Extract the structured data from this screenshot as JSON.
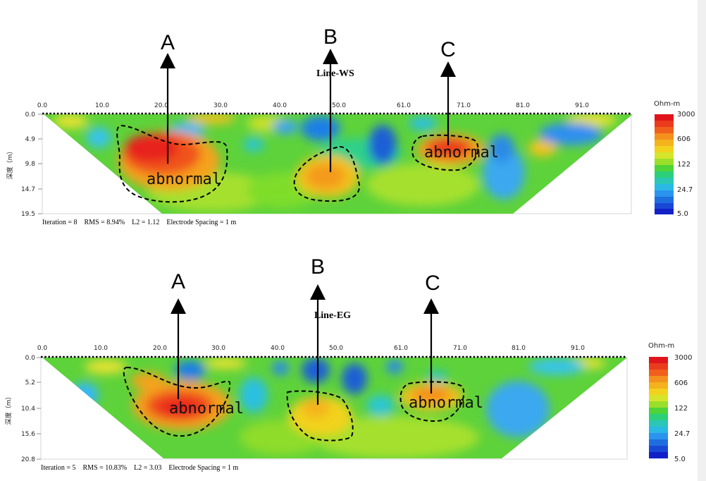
{
  "chart_data": [
    {
      "type": "heatmap",
      "title": "Line-WS",
      "ylabel": "深度（m）",
      "x_ticks": [
        "0.0",
        "10.0",
        "20.0",
        "30.0",
        "40.0",
        "50.0",
        "61.0",
        "71.0",
        "81.0",
        "91.0"
      ],
      "y_ticks": [
        "0.0",
        "4.9",
        "9.8",
        "14.7",
        "19.5"
      ],
      "xlim": [
        0,
        97
      ],
      "ylim": [
        0,
        19.5
      ],
      "colorbar": {
        "unit": "Ohm-m",
        "ticks": [
          "3000",
          "606",
          "122",
          "24.7",
          "5.0"
        ]
      },
      "stats": "Iteration = 8    RMS = 8.94%    L2 = 1.12    Electrode Spacing = 1 m",
      "anomalies": [
        {
          "letter": "A",
          "label": "abnormal",
          "x": 21,
          "depth": 8.5,
          "level": "high"
        },
        {
          "letter": "B",
          "label": "",
          "x": 48.5,
          "depth": 10.5,
          "level": "medium"
        },
        {
          "letter": "C",
          "label": "abnormal",
          "x": 68,
          "depth": 7.3,
          "level": "high"
        }
      ]
    },
    {
      "type": "heatmap",
      "title": "Line-EG",
      "ylabel": "深度（m）",
      "x_ticks": [
        "0.0",
        "10.0",
        "20.0",
        "30.0",
        "40.0",
        "50.0",
        "61.0",
        "71.0",
        "81.0",
        "91.0"
      ],
      "y_ticks": [
        "0.0",
        "5.2",
        "10.4",
        "15.6",
        "20.8"
      ],
      "xlim": [
        0,
        97
      ],
      "ylim": [
        0,
        20.8
      ],
      "colorbar": {
        "unit": "Ohm-m",
        "ticks": [
          "3000",
          "606",
          "122",
          "24.7",
          "5.0"
        ]
      },
      "stats": "Iteration = 5    RMS = 10.83%    L2 = 3.03    Electrode Spacing = 1 m",
      "anomalies": [
        {
          "letter": "A",
          "label": "abnormal",
          "x": 23,
          "depth": 9.5,
          "level": "high"
        },
        {
          "letter": "B",
          "label": "",
          "x": 47,
          "depth": 10.5,
          "level": "medium"
        },
        {
          "letter": "C",
          "label": "abnormal",
          "x": 65,
          "depth": 7.5,
          "level": "medium"
        }
      ]
    }
  ]
}
